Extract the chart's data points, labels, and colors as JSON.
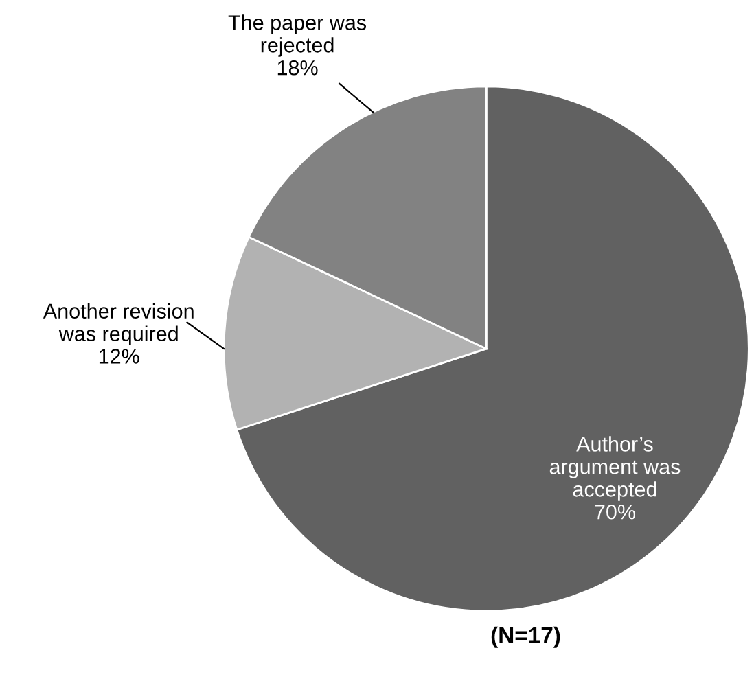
{
  "chart_data": {
    "type": "pie",
    "categories": [
      "Author’s argument was accepted",
      "Another revision was required",
      "The paper was rejected"
    ],
    "values": [
      70,
      12,
      18
    ],
    "value_labels": [
      "70%",
      "12%",
      "18%"
    ],
    "colors": [
      "#616161",
      "#b2b2b2",
      "#828282"
    ],
    "annotations": [
      "(N=17)"
    ],
    "legend": false
  }
}
